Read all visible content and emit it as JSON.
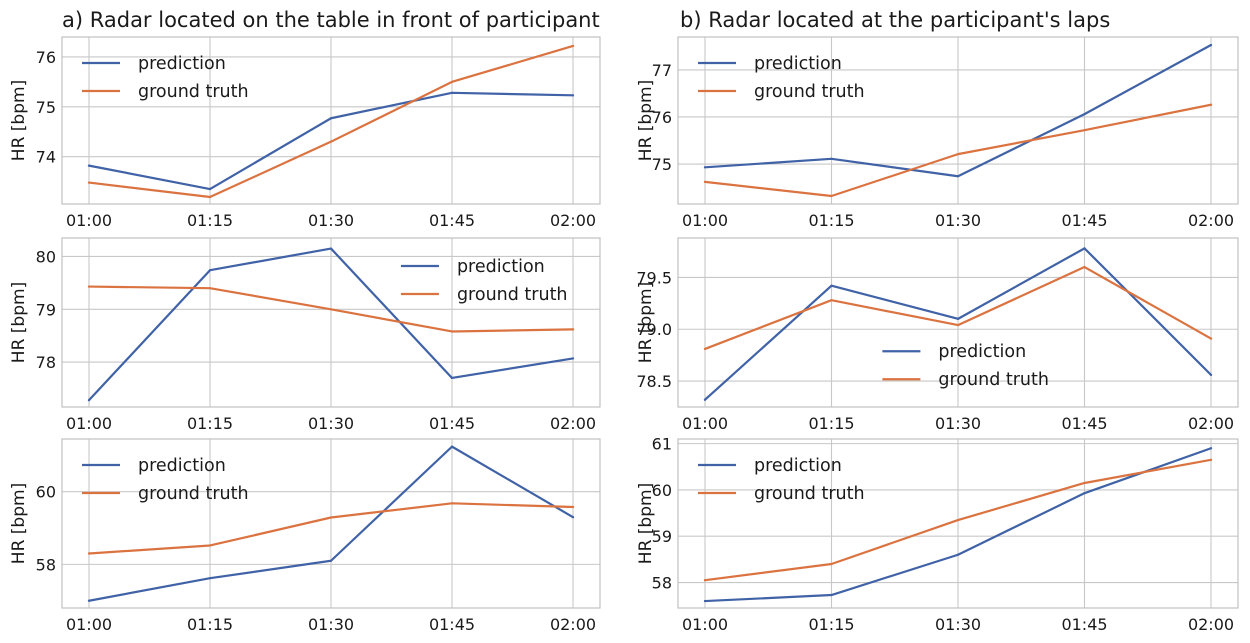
{
  "colors": {
    "prediction": "#4062a6",
    "ground_truth": "#db7340"
  },
  "titles": {
    "left": "a) Radar located on the table in front of participant",
    "right": "b) Radar located at the participant's laps"
  },
  "chart_data": [
    {
      "id": "a1",
      "type": "line",
      "column_title": "a) Radar located on the table in front of participant",
      "ylabel": "HR [bpm]",
      "xlabel": "",
      "categories": [
        "01:00",
        "01:15",
        "01:30",
        "01:45",
        "02:00"
      ],
      "ylim": [
        73.05,
        76.4
      ],
      "yticks": [
        74,
        75,
        76
      ],
      "yticklabels": [
        "74",
        "75",
        "76"
      ],
      "legend_position": "top-left",
      "series": [
        {
          "name": "prediction",
          "key": "prediction",
          "values": [
            73.82,
            73.35,
            74.77,
            75.28,
            75.23
          ]
        },
        {
          "name": "ground truth",
          "key": "ground_truth",
          "values": [
            73.48,
            73.19,
            74.3,
            75.5,
            76.22
          ]
        }
      ]
    },
    {
      "id": "a2",
      "type": "line",
      "column_title": "a) Radar located on the table in front of participant",
      "ylabel": "HR [bpm]",
      "xlabel": "",
      "categories": [
        "01:00",
        "01:15",
        "01:30",
        "01:45",
        "02:00"
      ],
      "ylim": [
        77.15,
        80.35
      ],
      "yticks": [
        78,
        79,
        80
      ],
      "yticklabels": [
        "78",
        "79",
        "80"
      ],
      "legend_position": "top-right",
      "series": [
        {
          "name": "prediction",
          "key": "prediction",
          "values": [
            77.28,
            79.74,
            80.15,
            77.7,
            78.07
          ]
        },
        {
          "name": "ground truth",
          "key": "ground_truth",
          "values": [
            79.43,
            79.4,
            79.0,
            78.58,
            78.62
          ]
        }
      ]
    },
    {
      "id": "a3",
      "type": "line",
      "column_title": "a) Radar located on the table in front of participant",
      "ylabel": "HR [bpm]",
      "xlabel": "",
      "categories": [
        "01:00",
        "01:15",
        "01:30",
        "01:45",
        "02:00"
      ],
      "ylim": [
        56.8,
        61.45
      ],
      "yticks": [
        58,
        60
      ],
      "yticklabels": [
        "58",
        "60"
      ],
      "legend_position": "top-left",
      "series": [
        {
          "name": "prediction",
          "key": "prediction",
          "values": [
            57.0,
            57.62,
            58.1,
            61.24,
            59.3
          ]
        },
        {
          "name": "ground truth",
          "key": "ground_truth",
          "values": [
            58.3,
            58.52,
            59.29,
            59.68,
            59.58
          ]
        }
      ]
    },
    {
      "id": "b1",
      "type": "line",
      "column_title": "b) Radar located at the participant's laps",
      "ylabel": "HR [bpm]",
      "xlabel": "",
      "categories": [
        "01:00",
        "01:15",
        "01:30",
        "01:45",
        "02:00"
      ],
      "ylim": [
        74.15,
        77.7
      ],
      "yticks": [
        75,
        76,
        77
      ],
      "yticklabels": [
        "75",
        "76",
        "77"
      ],
      "legend_position": "top-left",
      "series": [
        {
          "name": "prediction",
          "key": "prediction",
          "values": [
            74.93,
            75.11,
            74.74,
            76.06,
            77.53
          ]
        },
        {
          "name": "ground truth",
          "key": "ground_truth",
          "values": [
            74.62,
            74.32,
            75.21,
            75.72,
            76.26
          ]
        }
      ]
    },
    {
      "id": "b2",
      "type": "line",
      "column_title": "b) Radar located at the participant's laps",
      "ylabel": "HR [bpm]",
      "xlabel": "",
      "categories": [
        "01:00",
        "01:15",
        "01:30",
        "01:45",
        "02:00"
      ],
      "ylim": [
        78.25,
        79.88
      ],
      "yticks": [
        78.5,
        79.0,
        79.5
      ],
      "yticklabels": [
        "78.5",
        "79.0",
        "79.5"
      ],
      "legend_position": "lower-center",
      "series": [
        {
          "name": "prediction",
          "key": "prediction",
          "values": [
            78.32,
            79.42,
            79.1,
            79.78,
            78.56
          ]
        },
        {
          "name": "ground truth",
          "key": "ground_truth",
          "values": [
            78.81,
            79.28,
            79.04,
            79.6,
            78.91
          ]
        }
      ]
    },
    {
      "id": "b3",
      "type": "line",
      "column_title": "b) Radar located at the participant's laps",
      "ylabel": "HR [bpm]",
      "xlabel": "",
      "categories": [
        "01:00",
        "01:15",
        "01:30",
        "01:45",
        "02:00"
      ],
      "ylim": [
        57.45,
        61.1
      ],
      "yticks": [
        58,
        59,
        60,
        61
      ],
      "yticklabels": [
        "58",
        "59",
        "60",
        "61"
      ],
      "legend_position": "top-left",
      "series": [
        {
          "name": "prediction",
          "key": "prediction",
          "values": [
            57.6,
            57.73,
            58.6,
            59.93,
            60.9
          ]
        },
        {
          "name": "ground truth",
          "key": "ground_truth",
          "values": [
            58.05,
            58.4,
            59.35,
            60.15,
            60.65
          ]
        }
      ]
    }
  ]
}
